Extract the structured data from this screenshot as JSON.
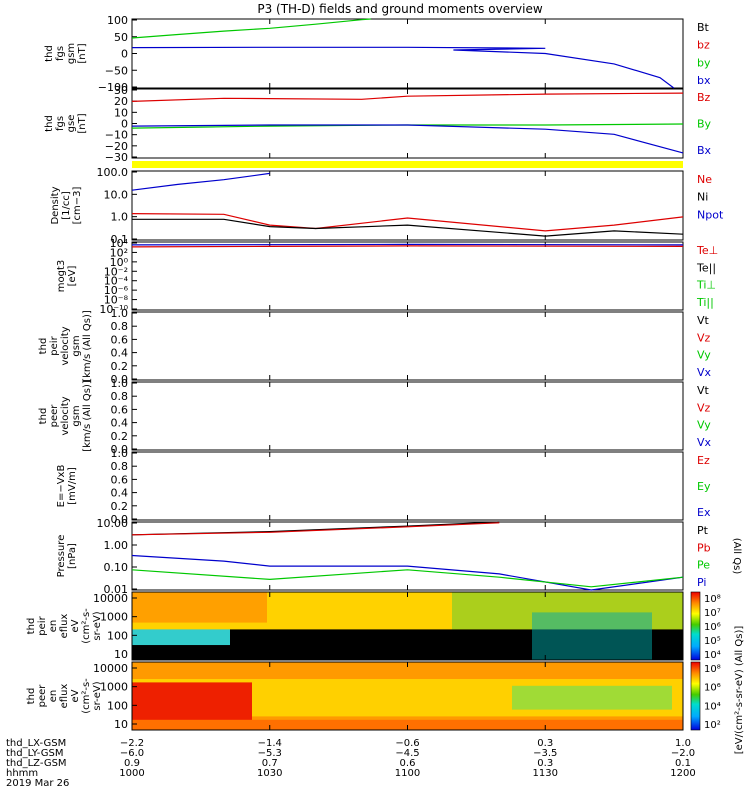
{
  "title": "P3 (TH-D) fields and ground moments overview",
  "colors": {
    "black": "#000000",
    "red": "#dd0000",
    "green": "#00c800",
    "blue": "#0000cc",
    "yellow": "#ffff00"
  },
  "chart_data": [
    {
      "panel": "fgs_gsm_nT",
      "type": "line",
      "ylabel": [
        "thd",
        "fgs",
        "gsm",
        "[nT]"
      ],
      "yticks": [
        "100",
        "50",
        "0",
        "−50",
        "−100"
      ],
      "ylim": [
        -100,
        100
      ],
      "legend": [
        {
          "label": "Bt",
          "color": "#000000"
        },
        {
          "label": "bz",
          "color": "#dd0000"
        },
        {
          "label": "by",
          "color": "#00c800"
        },
        {
          "label": "bx",
          "color": "#0000cc"
        }
      ],
      "series": [
        {
          "name": "by",
          "color": "#00c800",
          "x": [
            1000,
            1010,
            1020,
            1030,
            1040,
            1050,
            1052
          ],
          "y": [
            45,
            55,
            65,
            73,
            85,
            98,
            100
          ]
        },
        {
          "name": "bx",
          "color": "#0000cc",
          "x": [
            1000,
            1030,
            1060,
            1090,
            1110,
            1130,
            1145,
            1155,
            1158
          ],
          "y": [
            17,
            18,
            18,
            15,
            10,
            0,
            -30,
            -70,
            -100
          ]
        }
      ]
    },
    {
      "panel": "fgs_gse_nT",
      "type": "line",
      "ylabel": [
        "thd",
        "fgs",
        "gse",
        "[nT]"
      ],
      "yticks": [
        "30",
        "20",
        "10",
        "0",
        "−10",
        "−20",
        "−30"
      ],
      "ylim": [
        -35,
        32
      ],
      "legend": [
        {
          "label": "Bz",
          "color": "#dd0000"
        },
        {
          "label": "By",
          "color": "#00c800"
        },
        {
          "label": "Bx",
          "color": "#0000cc"
        }
      ],
      "series": [
        {
          "name": "Bz",
          "color": "#dd0000",
          "x": [
            1000,
            1020,
            1050,
            1100,
            1130,
            1200
          ],
          "y": [
            20,
            23,
            22,
            25,
            27,
            28
          ]
        },
        {
          "name": "By",
          "color": "#00c800",
          "x": [
            1000,
            1030,
            1100,
            1130,
            1200
          ],
          "y": [
            -6,
            -4,
            -3,
            -3,
            -2
          ]
        },
        {
          "name": "Bx",
          "color": "#0000cc",
          "x": [
            1000,
            1030,
            1100,
            1130,
            1145,
            1200
          ],
          "y": [
            -4,
            -3,
            -3,
            -7,
            -12,
            -30
          ]
        }
      ]
    },
    {
      "panel": "density",
      "type": "line",
      "yscale": "log",
      "ylabel": [
        "Density",
        "[1/cc]",
        "[cm−3]"
      ],
      "yticks": [
        "100.0",
        "10.0",
        "1.0",
        "0.1"
      ],
      "ylim": [
        0.05,
        200
      ],
      "legend": [
        {
          "label": "Ne",
          "color": "#dd0000"
        },
        {
          "label": "Ni",
          "color": "#000000"
        },
        {
          "label": "Npot",
          "color": "#0000cc"
        },
        {
          "label": "",
          "color": "#000000"
        }
      ],
      "series": [
        {
          "name": "Npot",
          "color": "#0000cc",
          "x": [
            1000,
            1010,
            1020,
            1030
          ],
          "y": [
            20,
            40,
            70,
            150
          ]
        },
        {
          "name": "Ne",
          "color": "#dd0000",
          "x": [
            1000,
            1020,
            1030,
            1040,
            1100,
            1130,
            1145,
            1200
          ],
          "y": [
            1.2,
            1.1,
            0.3,
            0.2,
            0.7,
            0.15,
            0.3,
            0.8
          ]
        },
        {
          "name": "Ni",
          "color": "#000000",
          "x": [
            1000,
            1020,
            1030,
            1040,
            1100,
            1130,
            1145,
            1200
          ],
          "y": [
            0.6,
            0.6,
            0.25,
            0.2,
            0.3,
            0.08,
            0.15,
            0.1
          ]
        }
      ]
    },
    {
      "panel": "temperature",
      "type": "line",
      "yscale": "log",
      "ylabel": [
        "mogt3",
        "[eV]"
      ],
      "yticks": [
        "10⁴",
        "10²",
        "10⁰",
        "10⁻²",
        "10⁻⁴",
        "10⁻⁶",
        "10⁻⁸",
        "10⁻¹⁰"
      ],
      "legend": [
        {
          "label": "Te⊥",
          "color": "#dd0000"
        },
        {
          "label": "Te||",
          "color": "#000000"
        },
        {
          "label": "Ti⊥",
          "color": "#00c800"
        },
        {
          "label": "Ti||",
          "color": "#00c800"
        }
      ],
      "series": [
        {
          "name": "Te⊥",
          "color": "#dd0000",
          "x": [
            1000,
            1030,
            1100,
            1200
          ],
          "y": [
            3.0,
            3.1,
            3.2,
            3.1
          ]
        },
        {
          "name": "Ti",
          "color": "#0000cc",
          "x": [
            1000,
            1100,
            1200
          ],
          "y": [
            3.4,
            3.5,
            3.4
          ]
        }
      ]
    },
    {
      "panel": "peir_velocity",
      "type": "line",
      "ylabel": [
        "thd",
        "peir",
        "velocity",
        "gsm",
        "[km/s (All Qs)]"
      ],
      "yticks": [
        "1.0",
        "0.8",
        "0.6",
        "0.4",
        "0.2",
        "0.0"
      ],
      "ylim": [
        0,
        1
      ],
      "legend": [
        {
          "label": "Vt",
          "color": "#000000"
        },
        {
          "label": "Vz",
          "color": "#dd0000"
        },
        {
          "label": "Vy",
          "color": "#00c800"
        },
        {
          "label": "Vx",
          "color": "#0000cc"
        }
      ],
      "series": []
    },
    {
      "panel": "peer_velocity",
      "type": "line",
      "ylabel": [
        "thd",
        "peer",
        "velocity",
        "gsm",
        "[km/s (All Qs)]"
      ],
      "yticks": [
        "1.0",
        "0.8",
        "0.6",
        "0.4",
        "0.2",
        "0.0"
      ],
      "ylim": [
        0,
        1
      ],
      "legend": [
        {
          "label": "Vt",
          "color": "#000000"
        },
        {
          "label": "Vz",
          "color": "#dd0000"
        },
        {
          "label": "Vy",
          "color": "#00c800"
        },
        {
          "label": "Vx",
          "color": "#0000cc"
        }
      ],
      "series": []
    },
    {
      "panel": "efield",
      "type": "line",
      "ylabel": [
        "E=−VxB",
        "[mV/m]"
      ],
      "yticks": [
        "1.0",
        "0.8",
        "0.6",
        "0.4",
        "0.2",
        "0.0"
      ],
      "ylim": [
        0,
        1
      ],
      "legend": [
        {
          "label": "Ez",
          "color": "#dd0000"
        },
        {
          "label": "Ey",
          "color": "#00c800"
        },
        {
          "label": "Ex",
          "color": "#0000cc"
        }
      ],
      "series": []
    },
    {
      "panel": "pressure",
      "type": "line",
      "yscale": "log",
      "ylabel": [
        "Pressure",
        "[nPa]"
      ],
      "yticks": [
        "10.00",
        "1.00",
        "0.10",
        "0.01"
      ],
      "ylim": [
        0.004,
        20
      ],
      "legend": [
        {
          "label": "Pt",
          "color": "#000000"
        },
        {
          "label": "Pb",
          "color": "#dd0000"
        },
        {
          "label": "Pe",
          "color": "#00c800"
        },
        {
          "label": "Pi",
          "color": "#0000cc"
        }
      ],
      "right_note": "(All Qs)",
      "series": [
        {
          "name": "Pt",
          "color": "#000000",
          "x": [
            1000,
            1030,
            1100,
            1120
          ],
          "y": [
            4,
            6,
            12,
            20
          ]
        },
        {
          "name": "Pb",
          "color": "#dd0000",
          "x": [
            1000,
            1030,
            1100,
            1120
          ],
          "y": [
            4,
            5.5,
            11,
            18
          ]
        },
        {
          "name": "Pi",
          "color": "#0000cc",
          "x": [
            1000,
            1020,
            1030,
            1100,
            1120,
            1140,
            1200
          ],
          "y": [
            0.3,
            0.15,
            0.08,
            0.08,
            0.03,
            0.004,
            0.02
          ]
        },
        {
          "name": "Pe",
          "color": "#00c800",
          "x": [
            1000,
            1030,
            1100,
            1120,
            1140,
            1200
          ],
          "y": [
            0.05,
            0.015,
            0.05,
            0.02,
            0.006,
            0.02
          ]
        }
      ]
    },
    {
      "panel": "peir_en_eflux",
      "type": "heatmap",
      "ylabel": [
        "thd",
        "peir",
        "en",
        "eflux",
        "eV",
        "(cm²-s-",
        "sr-eV)"
      ],
      "yticks": [
        "10000",
        "1000",
        "100",
        "10"
      ]
    },
    {
      "panel": "peer_en_eflux",
      "type": "heatmap",
      "ylabel": [
        "thd",
        "peer",
        "en",
        "eflux",
        "eV",
        "(cm²-s-",
        "sr-eV)"
      ],
      "yticks": [
        "10000",
        "1000",
        "100",
        "10"
      ]
    }
  ],
  "colorbar": {
    "top_ticks": [
      "10⁸",
      "10⁷",
      "10⁶",
      "10⁵",
      "10⁴"
    ],
    "bottom_ticks": [
      "10⁸",
      "10⁶",
      "10⁴",
      "10²"
    ],
    "label": "[eV/(cm²-s-sr-eV) (All Qs)]"
  },
  "xaxis": {
    "row_labels": [
      "thd_LX-GSM",
      "thd_LY-GSM",
      "thd_LZ-GSM",
      "hhmm",
      "2019 Mar 26"
    ],
    "lx": [
      "−2.2",
      "−1.4",
      "−0.6",
      "0.3",
      "1.0"
    ],
    "ly": [
      "−6.0",
      "−5.3",
      "−4.5",
      "−3.5",
      "−2.0"
    ],
    "lz": [
      "0.9",
      "0.7",
      "0.6",
      "0.3",
      "0.1"
    ],
    "hhmm": [
      "1000",
      "1030",
      "1100",
      "1130",
      "1200"
    ]
  }
}
